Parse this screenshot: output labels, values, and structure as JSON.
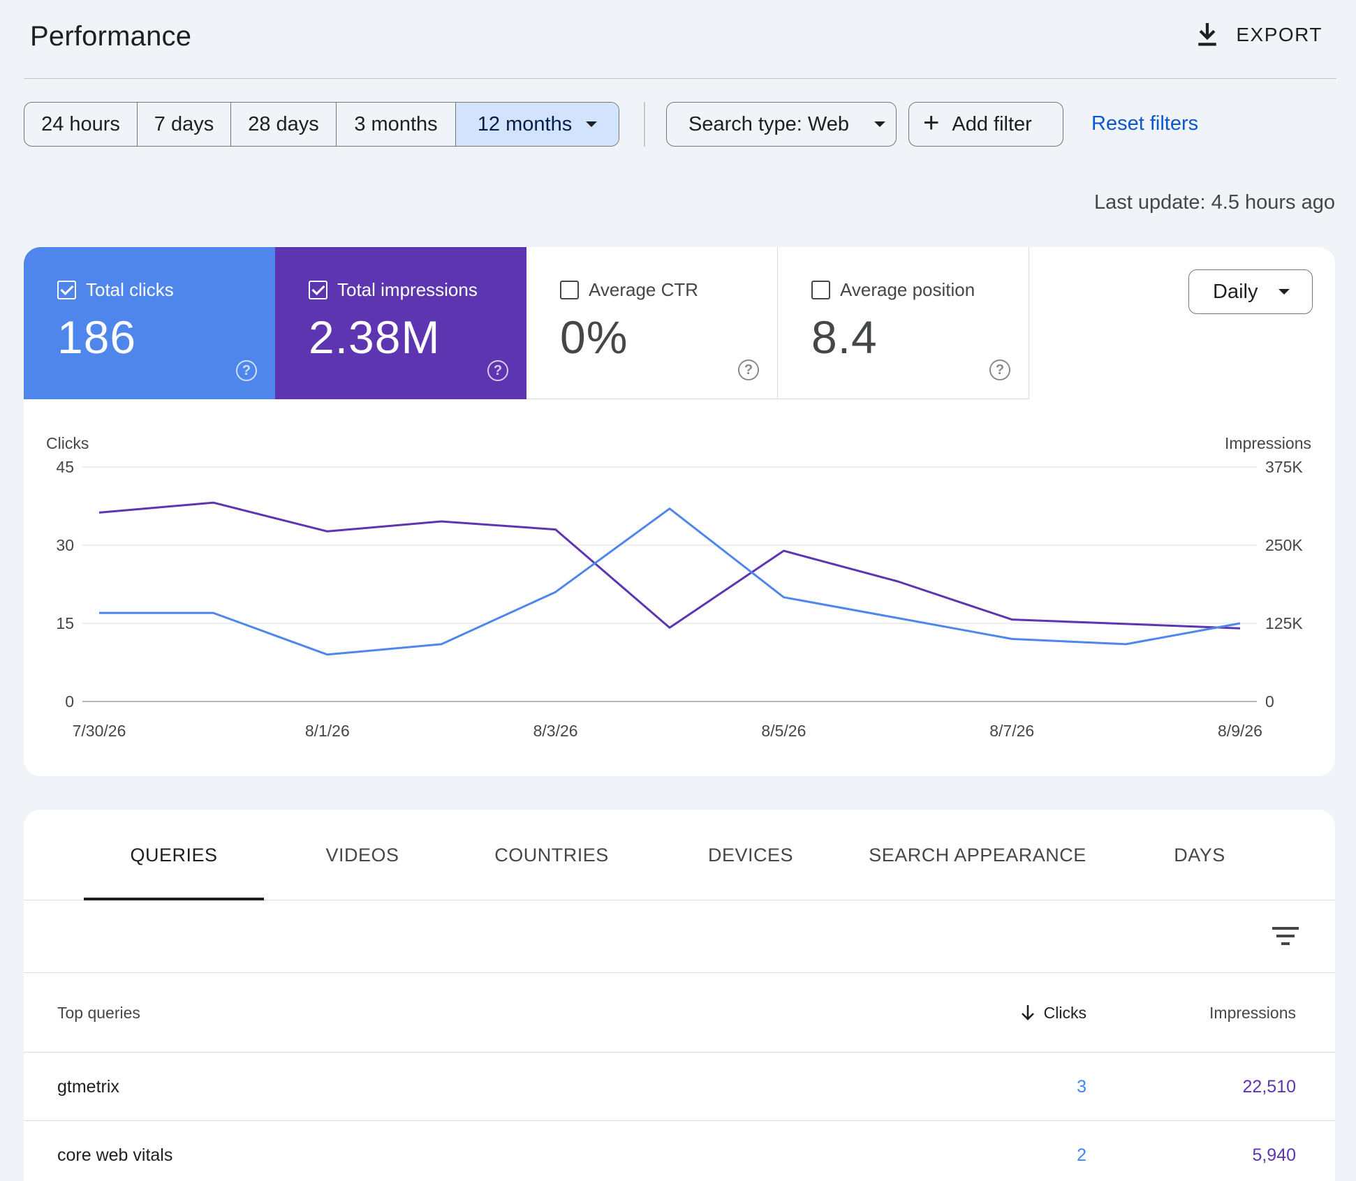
{
  "header": {
    "title": "Performance",
    "export_label": "EXPORT"
  },
  "filters": {
    "ranges": [
      {
        "label": "24 hours",
        "active": false
      },
      {
        "label": "7 days",
        "active": false
      },
      {
        "label": "28 days",
        "active": false
      },
      {
        "label": "3 months",
        "active": false
      },
      {
        "label": "12 months",
        "active": true
      }
    ],
    "search_type_label": "Search type: Web",
    "add_filter_label": "Add filter",
    "reset_label": "Reset filters"
  },
  "last_update": "Last update: 4.5 hours ago",
  "metrics": [
    {
      "label": "Total clicks",
      "value": "186",
      "checked": true,
      "color": "#4f86ec"
    },
    {
      "label": "Total impressions",
      "value": "2.38M",
      "checked": true,
      "color": "#5e35b1"
    },
    {
      "label": "Average CTR",
      "value": "0%",
      "checked": false
    },
    {
      "label": "Average position",
      "value": "8.4",
      "checked": false
    }
  ],
  "granularity_label": "Daily",
  "chart_data": {
    "type": "line",
    "left_axis_label": "Clicks",
    "right_axis_label": "Impressions",
    "left_ticks": [
      "45",
      "30",
      "15",
      "0"
    ],
    "right_ticks": [
      "375K",
      "250K",
      "125K",
      "0"
    ],
    "left_ylim": [
      0,
      45
    ],
    "right_ylim": [
      0,
      375000
    ],
    "x": [
      "7/30/26",
      "7/31/26",
      "8/1/26",
      "8/2/26",
      "8/3/26",
      "8/4/26",
      "8/5/26",
      "8/6/26",
      "8/7/26",
      "8/8/26",
      "8/9/26"
    ],
    "x_tick_labels": [
      "7/30/26",
      "8/1/26",
      "8/3/26",
      "8/5/26",
      "8/7/26",
      "8/9/26"
    ],
    "grid": true,
    "series": [
      {
        "name": "Clicks",
        "axis": "left",
        "color": "#4f86ec",
        "values": [
          17,
          17,
          9,
          11,
          21,
          37,
          20,
          16,
          12,
          11,
          15
        ]
      },
      {
        "name": "Impressions",
        "axis": "right",
        "color": "#5e35b1",
        "values": [
          302000,
          318000,
          272000,
          288000,
          275000,
          118000,
          241000,
          192000,
          131000,
          124000,
          117000
        ]
      }
    ]
  },
  "table": {
    "tabs": [
      {
        "label": "QUERIES",
        "active": true
      },
      {
        "label": "VIDEOS",
        "active": false
      },
      {
        "label": "COUNTRIES",
        "active": false
      },
      {
        "label": "DEVICES",
        "active": false
      },
      {
        "label": "SEARCH APPEARANCE",
        "active": false
      },
      {
        "label": "DAYS",
        "active": false
      }
    ],
    "columns": {
      "query": "Top queries",
      "clicks": "Clicks",
      "impressions": "Impressions"
    },
    "rows": [
      {
        "query": "gtmetrix",
        "clicks": "3",
        "impressions": "22,510"
      },
      {
        "query": "core web vitals",
        "clicks": "2",
        "impressions": "5,940"
      }
    ]
  }
}
